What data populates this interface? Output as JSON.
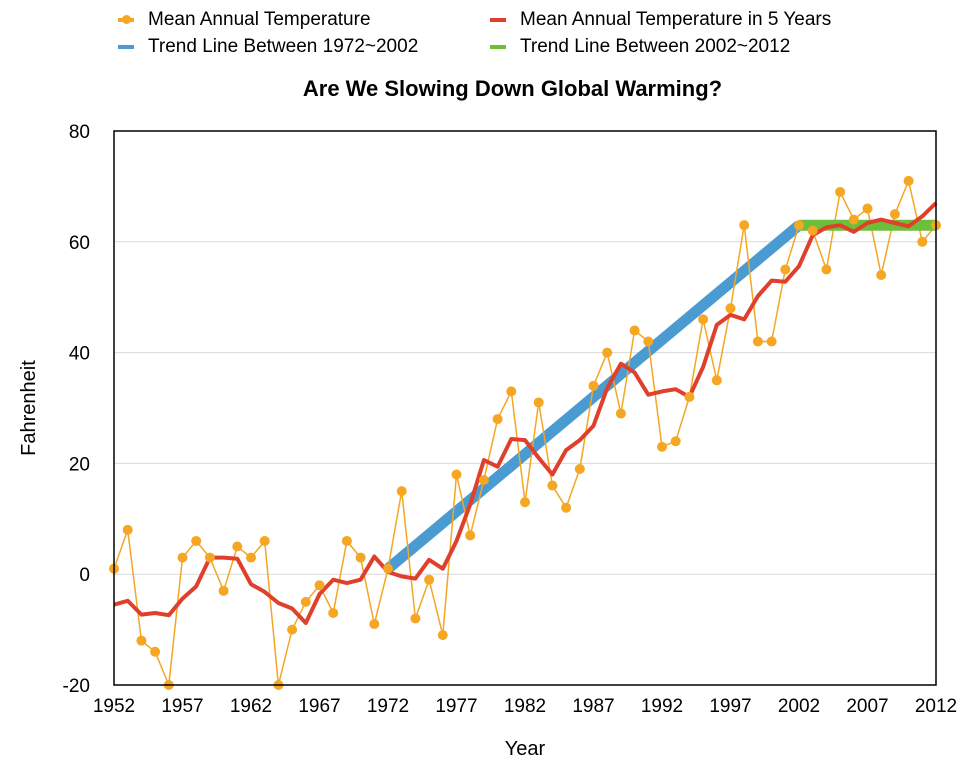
{
  "chart_data": {
    "type": "line",
    "title": "Are We Slowing Down Global Warming?",
    "xlabel": "Year",
    "ylabel": "Fahrenheit",
    "xlim": [
      1952,
      2012
    ],
    "ylim": [
      -20,
      80
    ],
    "x_ticks": [
      1952,
      1957,
      1962,
      1967,
      1972,
      1977,
      1982,
      1987,
      1992,
      1997,
      2002,
      2007,
      2012
    ],
    "y_ticks": [
      -20,
      0,
      20,
      40,
      60,
      80
    ],
    "grid": "horizontal",
    "legend_position": "top",
    "series": [
      {
        "name": "Mean Annual Temperature",
        "color": "#F5A623",
        "style": "line-with-markers",
        "x": [
          1952,
          1953,
          1954,
          1955,
          1956,
          1957,
          1958,
          1959,
          1960,
          1961,
          1962,
          1963,
          1964,
          1965,
          1966,
          1967,
          1968,
          1969,
          1970,
          1971,
          1972,
          1973,
          1974,
          1975,
          1976,
          1977,
          1978,
          1979,
          1980,
          1981,
          1982,
          1983,
          1984,
          1985,
          1986,
          1987,
          1988,
          1989,
          1990,
          1991,
          1992,
          1993,
          1994,
          1995,
          1996,
          1997,
          1998,
          1999,
          2000,
          2001,
          2002,
          2003,
          2004,
          2005,
          2006,
          2007,
          2008,
          2009,
          2010,
          2011,
          2012
        ],
        "y": [
          1,
          8,
          -12,
          -14,
          -20,
          3,
          6,
          3,
          -3,
          5,
          3,
          6,
          -20,
          -10,
          -5,
          -2,
          -7,
          6,
          3,
          -9,
          1,
          15,
          -8,
          -1,
          -11,
          18,
          7,
          17,
          28,
          33,
          13,
          31,
          16,
          12,
          19,
          34,
          40,
          29,
          44,
          42,
          23,
          24,
          32,
          46,
          35,
          48,
          63,
          42,
          42,
          55,
          63,
          62,
          55,
          69,
          64,
          66,
          54,
          65,
          71,
          60,
          63
        ]
      },
      {
        "name": "Mean Annual Temperature in 5 Years",
        "color": "#E0402B",
        "style": "line",
        "x": [
          1952,
          1953,
          1954,
          1955,
          1956,
          1957,
          1958,
          1959,
          1960,
          1961,
          1962,
          1963,
          1964,
          1965,
          1966,
          1967,
          1968,
          1969,
          1970,
          1971,
          1972,
          1973,
          1974,
          1975,
          1976,
          1977,
          1978,
          1979,
          1980,
          1981,
          1982,
          1983,
          1984,
          1985,
          1986,
          1987,
          1988,
          1989,
          1990,
          1991,
          1992,
          1993,
          1994,
          1995,
          1996,
          1997,
          1998,
          1999,
          2000,
          2001,
          2002,
          2003,
          2004,
          2005,
          2006,
          2007,
          2008,
          2009,
          2010,
          2011,
          2012
        ],
        "y": [
          -5.5,
          -4.8,
          -7.3,
          -7,
          -7.4,
          -4.4,
          -2.2,
          3,
          3,
          2.8,
          -1.8,
          -3.2,
          -5.2,
          -6.2,
          -8.8,
          -3.6,
          -1,
          -1.6,
          -1,
          3.2,
          0.4,
          -0.4,
          -0.8,
          2.6,
          1,
          6,
          12.6,
          20.6,
          19.4,
          24.4,
          24.2,
          21,
          18,
          22.4,
          24.2,
          26.8,
          33.6,
          38,
          36.4,
          32.4,
          33,
          33.4,
          32,
          37.4,
          45,
          46.8,
          46,
          50.2,
          53,
          52.8,
          55.6,
          61.2,
          62.6,
          63,
          61.8,
          63.4,
          64,
          63.4,
          62.8,
          64.6,
          67
        ]
      },
      {
        "name": "Trend Line Between 1972~2002",
        "color": "#4A9BD1",
        "style": "thick-line",
        "x": [
          1972,
          2002
        ],
        "y": [
          1,
          63
        ]
      },
      {
        "name": "Trend Line Between 2002~2012",
        "color": "#6CBF3B",
        "style": "thick-line",
        "x": [
          2002,
          2012
        ],
        "y": [
          63,
          63
        ]
      }
    ]
  }
}
